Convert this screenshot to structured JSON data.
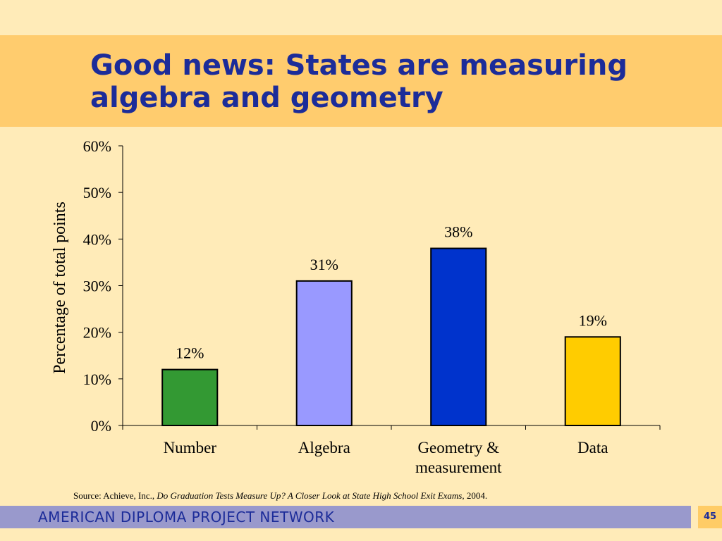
{
  "slide": {
    "title": "Good news: States are measuring algebra and geometry",
    "footer": "AMERICAN DIPLOMA PROJECT NETWORK",
    "page_number": "45",
    "source_prefix": "Source: Achieve, Inc., ",
    "source_title": "Do Graduation Tests Measure Up? A Closer Look at State High School Exit Exams,",
    "source_suffix": " 2004."
  },
  "colors": {
    "background": "#FFEBB8",
    "title_band": "#FFCC6E",
    "title_text": "#1C2C99",
    "footer_band": "#9999CC"
  },
  "chart_data": {
    "type": "bar",
    "ylabel": "Percentage of total points",
    "ylim": [
      0,
      60
    ],
    "yticks": [
      "0%",
      "10%",
      "20%",
      "30%",
      "40%",
      "50%",
      "60%"
    ],
    "grid": false,
    "legend": "none",
    "categories": [
      {
        "lines": [
          "Number"
        ]
      },
      {
        "lines": [
          "Algebra"
        ]
      },
      {
        "lines": [
          "Geometry &",
          "measurement"
        ]
      },
      {
        "lines": [
          "Data"
        ]
      }
    ],
    "values": [
      12,
      31,
      38,
      19
    ],
    "data_labels": [
      "12%",
      "31%",
      "38%",
      "19%"
    ],
    "bar_colors": [
      "#339933",
      "#9999FF",
      "#0033CC",
      "#FFCC00"
    ]
  }
}
